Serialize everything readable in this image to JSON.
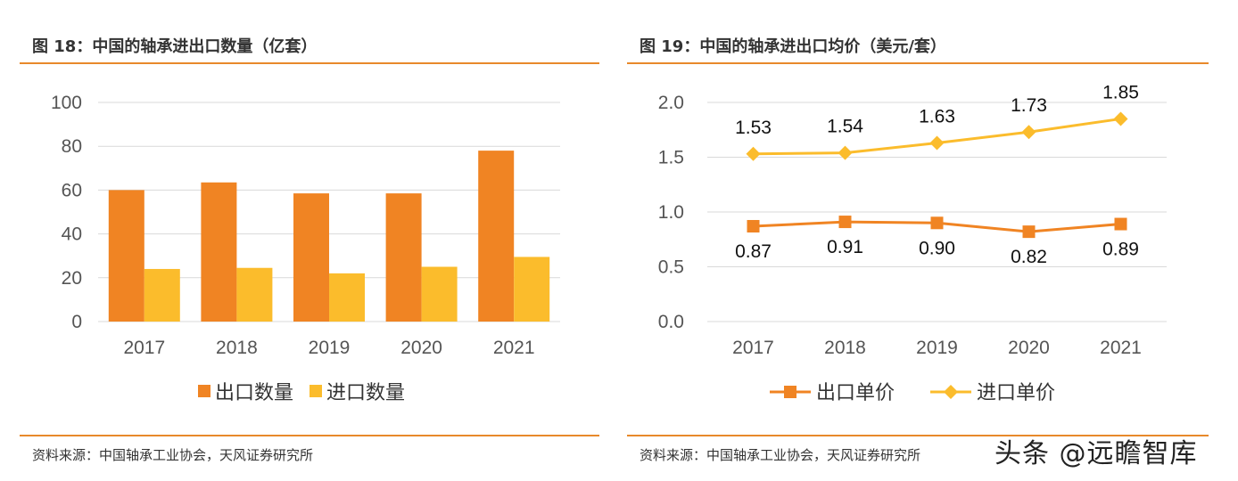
{
  "left": {
    "title": "图 18：中国的轴承进出口数量（亿套）",
    "source": "资料来源：中国轴承工业协会，天风证券研究所"
  },
  "right": {
    "title": "图 19：中国的轴承进出口均价（美元/套）",
    "source": "资料来源：中国轴承工业协会，天风证券研究所"
  },
  "watermark": "头条 @远瞻智库",
  "colors": {
    "orange": "#f08423",
    "yellow": "#fbbc2c",
    "rule": "#e8892b",
    "grid": "#d9d9d9"
  },
  "chart_data": [
    {
      "type": "bar",
      "title": "图 18：中国的轴承进出口数量（亿套）",
      "categories": [
        "2017",
        "2018",
        "2019",
        "2020",
        "2021"
      ],
      "series": [
        {
          "name": "出口数量",
          "values": [
            60,
            63.5,
            58.5,
            58.5,
            78
          ],
          "color": "#f08423"
        },
        {
          "name": "进口数量",
          "values": [
            24,
            24.5,
            22,
            25,
            29.5
          ],
          "color": "#fbbc2c"
        }
      ],
      "ylim": [
        0,
        100
      ],
      "yticks": [
        "0",
        "20",
        "40",
        "60",
        "80",
        "100"
      ],
      "grid": true,
      "legend": "bottom"
    },
    {
      "type": "line",
      "title": "图 19：中国的轴承进出口均价（美元/套）",
      "categories": [
        "2017",
        "2018",
        "2019",
        "2020",
        "2021"
      ],
      "series": [
        {
          "name": "出口单价",
          "values": [
            0.87,
            0.91,
            0.9,
            0.82,
            0.89
          ],
          "labels": [
            "0.87",
            "0.91",
            "0.90",
            "0.82",
            "0.89"
          ],
          "color": "#f08423",
          "marker": "square"
        },
        {
          "name": "进口单价",
          "values": [
            1.53,
            1.54,
            1.63,
            1.73,
            1.85
          ],
          "labels": [
            "1.53",
            "1.54",
            "1.63",
            "1.73",
            "1.85"
          ],
          "color": "#fbbc2c",
          "marker": "diamond"
        }
      ],
      "ylim": [
        0,
        2.0
      ],
      "yticks": [
        "0.0",
        "0.5",
        "1.0",
        "1.5",
        "2.0"
      ],
      "grid": true,
      "legend": "bottom"
    }
  ]
}
